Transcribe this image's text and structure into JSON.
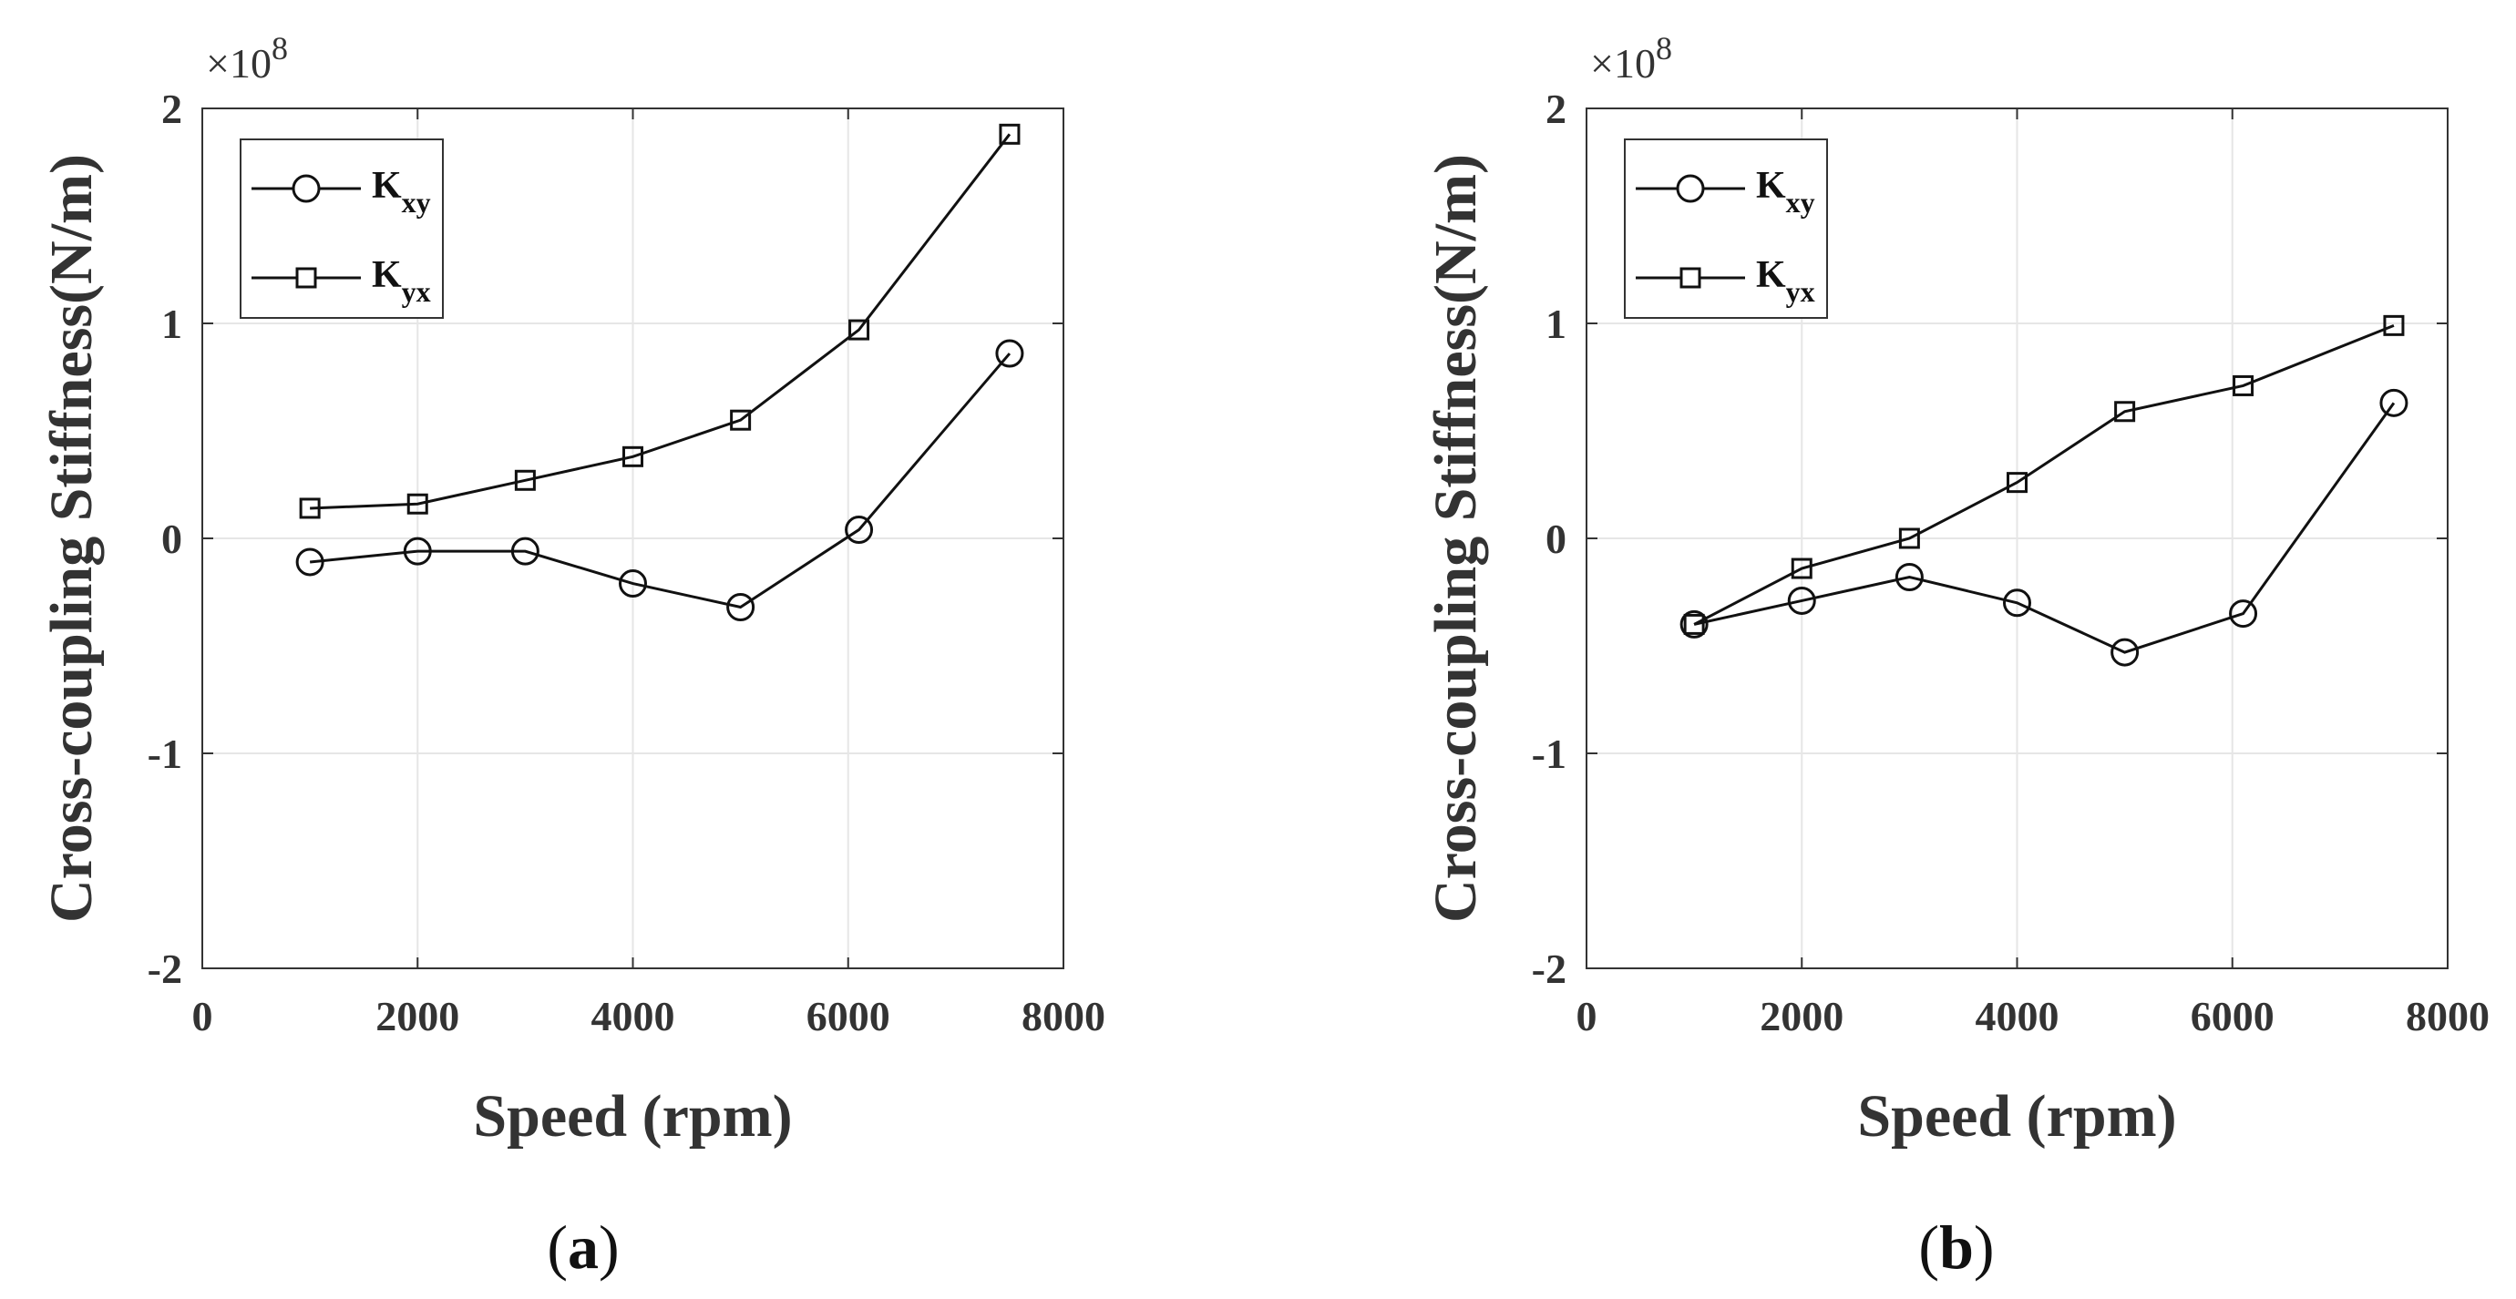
{
  "chart_data": [
    {
      "type": "line",
      "panel_label": "(a)",
      "panel_letter": "a",
      "xlabel": "Speed (rpm)",
      "ylabel": "Cross-coupling Stiffness(N/m)",
      "y_exponent_prefix": "×10",
      "y_exponent": "8",
      "xlim": [
        0,
        8000
      ],
      "ylim": [
        -2,
        2
      ],
      "xticks": [
        0,
        2000,
        4000,
        6000,
        8000
      ],
      "yticks": [
        -2,
        -1,
        0,
        1,
        2
      ],
      "grid": true,
      "legend_position": "top-left",
      "x": [
        1000,
        2000,
        3000,
        4000,
        5000,
        6100,
        7500
      ],
      "series": [
        {
          "name": "K",
          "sub": "xy",
          "marker": "circle",
          "values": [
            -0.11,
            -0.06,
            -0.06,
            -0.21,
            -0.32,
            0.04,
            0.86
          ]
        },
        {
          "name": "K",
          "sub": "yx",
          "marker": "square",
          "values": [
            0.14,
            0.16,
            0.27,
            0.38,
            0.55,
            0.97,
            1.88
          ]
        }
      ]
    },
    {
      "type": "line",
      "panel_label": "(b)",
      "panel_letter": "b",
      "xlabel": "Speed (rpm)",
      "ylabel": "Cross-coupling Stiffness(N/m)",
      "y_exponent_prefix": "×10",
      "y_exponent": "8",
      "xlim": [
        0,
        8000
      ],
      "ylim": [
        -2,
        2
      ],
      "xticks": [
        0,
        2000,
        4000,
        6000,
        8000
      ],
      "yticks": [
        -2,
        -1,
        0,
        1,
        2
      ],
      "grid": true,
      "legend_position": "top-left",
      "x": [
        1000,
        2000,
        3000,
        4000,
        5000,
        6100,
        7500
      ],
      "series": [
        {
          "name": "K",
          "sub": "xy",
          "marker": "circle",
          "values": [
            -0.4,
            -0.29,
            -0.18,
            -0.3,
            -0.53,
            -0.35,
            0.63
          ]
        },
        {
          "name": "K",
          "sub": "yx",
          "marker": "square",
          "values": [
            -0.4,
            -0.14,
            0.0,
            0.26,
            0.59,
            0.71,
            0.99
          ]
        }
      ]
    }
  ]
}
